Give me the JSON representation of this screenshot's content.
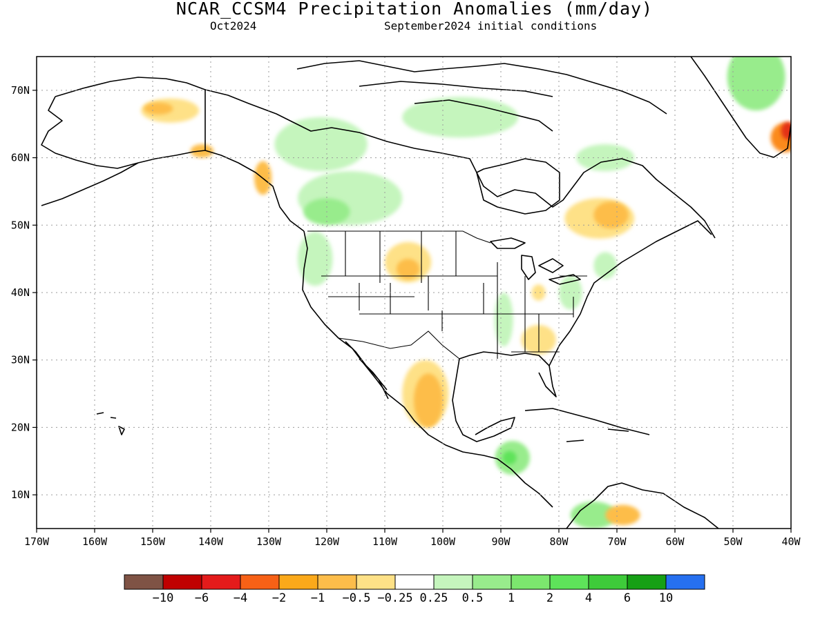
{
  "title": "NCAR_CCSM4 Precipitation Anomalies (mm/day)",
  "valid_month": "Oct2024",
  "init_text": "September2024 initial conditions",
  "map": {
    "lon_range": [
      -170,
      -40
    ],
    "lat_range": [
      5,
      75
    ],
    "lon_ticks": [
      {
        "value": -170,
        "label": "170W"
      },
      {
        "value": -160,
        "label": "160W"
      },
      {
        "value": -150,
        "label": "150W"
      },
      {
        "value": -140,
        "label": "140W"
      },
      {
        "value": -130,
        "label": "130W"
      },
      {
        "value": -120,
        "label": "120W"
      },
      {
        "value": -110,
        "label": "110W"
      },
      {
        "value": -100,
        "label": "100W"
      },
      {
        "value": -90,
        "label": "90W"
      },
      {
        "value": -80,
        "label": "80W"
      },
      {
        "value": -70,
        "label": "70W"
      },
      {
        "value": -60,
        "label": "60W"
      },
      {
        "value": -50,
        "label": "50W"
      },
      {
        "value": -40,
        "label": "40W"
      }
    ],
    "lat_ticks": [
      {
        "value": 10,
        "label": "10N"
      },
      {
        "value": 20,
        "label": "20N"
      },
      {
        "value": 30,
        "label": "30N"
      },
      {
        "value": 40,
        "label": "40N"
      },
      {
        "value": 50,
        "label": "50N"
      },
      {
        "value": 60,
        "label": "60N"
      },
      {
        "value": 70,
        "label": "70N"
      }
    ],
    "grid": "dotted",
    "anomaly_regions": [
      {
        "name": "alaska-dry",
        "lon": -147,
        "lat": 67,
        "rlon": 5,
        "rlat": 1.8,
        "color": "#fee187"
      },
      {
        "name": "alaska-dry-core",
        "lon": -149,
        "lat": 67.3,
        "rlon": 2.5,
        "rlat": 0.9,
        "color": "#fdbd4a"
      },
      {
        "name": "yukon-dry",
        "lon": -141.5,
        "lat": 61,
        "rlon": 2,
        "rlat": 1,
        "color": "#fdbd4a"
      },
      {
        "name": "bc-coast-dry",
        "lon": -131,
        "lat": 57,
        "rlon": 1.5,
        "rlat": 2.5,
        "color": "#fdbd4a"
      },
      {
        "name": "nwt-wet",
        "lon": -121,
        "lat": 62,
        "rlon": 8,
        "rlat": 4,
        "color": "#c5f5bd"
      },
      {
        "name": "prairie-wet",
        "lon": -116,
        "lat": 54,
        "rlon": 9,
        "rlat": 4,
        "color": "#c5f5bd"
      },
      {
        "name": "alberta-wet",
        "lon": -120,
        "lat": 52,
        "rlon": 4,
        "rlat": 2,
        "color": "#98ec8c"
      },
      {
        "name": "nunavut-wet",
        "lon": -97,
        "lat": 66,
        "rlon": 10,
        "rlat": 3,
        "color": "#c5f5bd"
      },
      {
        "name": "pnw-wet",
        "lon": -122,
        "lat": 45,
        "rlon": 3,
        "rlat": 4,
        "color": "#c5f5bd"
      },
      {
        "name": "montana-dry",
        "lon": -106,
        "lat": 44.5,
        "rlon": 4,
        "rlat": 3,
        "color": "#fee187"
      },
      {
        "name": "montana-dry-core",
        "lon": -106,
        "lat": 43.5,
        "rlon": 2,
        "rlat": 1.5,
        "color": "#fdbd4a"
      },
      {
        "name": "mexico-dry",
        "lon": -103,
        "lat": 25,
        "rlon": 4,
        "rlat": 5,
        "color": "#fee187"
      },
      {
        "name": "mexico-dry-core",
        "lon": -102.5,
        "lat": 24,
        "rlon": 2.5,
        "rlat": 4,
        "color": "#fdbd4a"
      },
      {
        "name": "southeast-dry",
        "lon": -83.5,
        "lat": 33,
        "rlon": 3,
        "rlat": 2.2,
        "color": "#fee187"
      },
      {
        "name": "ohio-dry",
        "lon": -83.5,
        "lat": 40,
        "rlon": 1.2,
        "rlat": 1.2,
        "color": "#fee187"
      },
      {
        "name": "quebec-dry",
        "lon": -73,
        "lat": 51,
        "rlon": 6,
        "rlat": 3,
        "color": "#fee187"
      },
      {
        "name": "quebec-dry-core",
        "lon": -71,
        "lat": 51.5,
        "rlon": 3,
        "rlat": 2,
        "color": "#fdbd4a"
      },
      {
        "name": "labrador-wet",
        "lon": -72,
        "lat": 60,
        "rlon": 5,
        "rlat": 2,
        "color": "#c5f5bd"
      },
      {
        "name": "central-america-wet",
        "lon": -88,
        "lat": 15.5,
        "rlon": 3,
        "rlat": 2.5,
        "color": "#98ec8c"
      },
      {
        "name": "central-america-wet-core",
        "lon": -88.5,
        "lat": 15.5,
        "rlon": 1.2,
        "rlat": 1,
        "color": "#5ee35a"
      },
      {
        "name": "colombia-wet",
        "lon": -74,
        "lat": 7,
        "rlon": 4,
        "rlat": 2,
        "color": "#98ec8c"
      },
      {
        "name": "venezuela-dry",
        "lon": -69,
        "lat": 7,
        "rlon": 3,
        "rlat": 1.5,
        "color": "#fdbd4a"
      },
      {
        "name": "greenland-wet",
        "lon": -46,
        "lat": 72,
        "rlon": 5,
        "rlat": 5,
        "color": "#98ec8c"
      },
      {
        "name": "greenland-dry",
        "lon": -41,
        "lat": 63,
        "rlon": 2.5,
        "rlat": 2.2,
        "color": "#fb8a1c"
      },
      {
        "name": "greenland-dry-core",
        "lon": -40.5,
        "lat": 64,
        "rlon": 1.2,
        "rlat": 1.3,
        "color": "#e43219"
      },
      {
        "name": "mississippi-wet",
        "lon": -89.5,
        "lat": 36,
        "rlon": 1.6,
        "rlat": 4,
        "color": "#c5f5bd"
      },
      {
        "name": "midatlantic-wet",
        "lon": -78,
        "lat": 40,
        "rlon": 2,
        "rlat": 2.5,
        "color": "#c5f5bd"
      },
      {
        "name": "newengland-wet",
        "lon": -72,
        "lat": 44,
        "rlon": 2,
        "rlat": 2,
        "color": "#c5f5bd"
      }
    ]
  },
  "colorbar": {
    "colors": [
      "#7f5345",
      "#c00000",
      "#e41b1b",
      "#f76116",
      "#fba91a",
      "#fdbd4a",
      "#fee187",
      "#ffffff",
      "#c5f5bd",
      "#98ec8c",
      "#7ce76e",
      "#5ee35a",
      "#3ecb3a",
      "#16a015",
      "#2670f0"
    ],
    "labels": [
      "−10",
      "−6",
      "−4",
      "−2",
      "−1",
      "−0.5",
      "−0.25",
      "0.25",
      "0.5",
      "1",
      "2",
      "4",
      "6",
      "10"
    ]
  }
}
